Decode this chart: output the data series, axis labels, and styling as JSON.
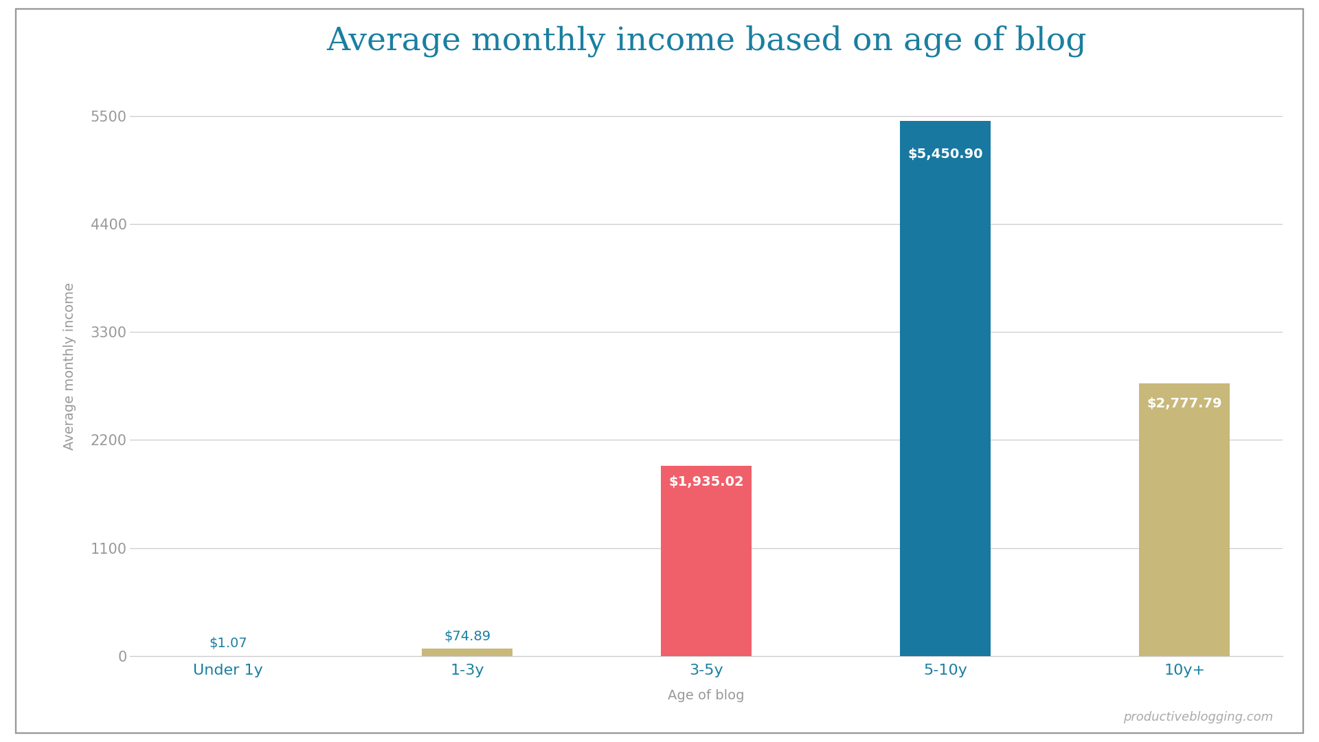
{
  "title": "Average monthly income based on age of blog",
  "categories": [
    "Under 1y",
    "1-3y",
    "3-5y",
    "5-10y",
    "10y+"
  ],
  "values": [
    1.07,
    74.89,
    1935.02,
    5450.9,
    2777.79
  ],
  "labels": [
    "$1.07",
    "$74.89",
    "$1,935.02",
    "$5,450.90",
    "$2,777.79"
  ],
  "bar_colors": [
    "#2a8fa3",
    "#c8b87a",
    "#f0606a",
    "#1878a0",
    "#c8b87a"
  ],
  "xlabel": "Age of blog",
  "ylabel": "Average monthly income",
  "yticks": [
    0,
    1100,
    2200,
    3300,
    4400,
    5500
  ],
  "ylim": [
    0,
    5900
  ],
  "title_color": "#1a7fa0",
  "axis_label_color": "#999999",
  "tick_color": "#999999",
  "xtick_color": "#1a7fa0",
  "grid_color": "#cccccc",
  "background_color": "#ffffff",
  "border_color": "#999999",
  "watermark": "productiveblogging.com",
  "title_fontsize": 34,
  "label_fontsize": 14,
  "axis_fontsize": 14,
  "tick_fontsize": 15,
  "xtick_fontsize": 16,
  "watermark_fontsize": 13,
  "bar_width": 0.38
}
